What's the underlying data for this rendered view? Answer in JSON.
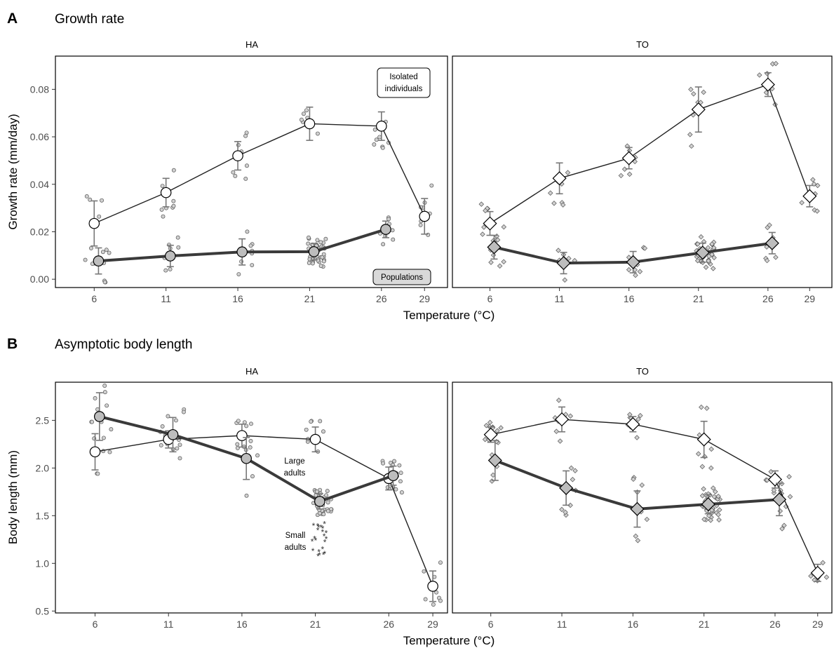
{
  "chart_data": [
    {
      "type": "line",
      "panel_letter": "A",
      "title": "Growth rate",
      "xlabel": "Temperature (°C)",
      "ylabel": "Growth rate (mm/day)",
      "x_ticks": [
        6,
        11,
        16,
        21,
        26,
        29
      ],
      "y_ticks": [
        0.0,
        0.02,
        0.04,
        0.06,
        0.08
      ],
      "y_tick_labels": [
        "0.00",
        "0.02",
        "0.04",
        "0.06",
        "0.08"
      ],
      "xlim": [
        3.3,
        30.6
      ],
      "ylim": [
        -0.0035,
        0.094
      ],
      "facets": [
        "HA",
        "TO"
      ],
      "grid": false,
      "annotations": [
        {
          "facet": "HA",
          "text": [
            "Isolated",
            "individuals"
          ],
          "boxed": true,
          "fill": "#ffffff"
        },
        {
          "facet": "HA",
          "text": [
            "Populations"
          ],
          "boxed": true,
          "fill": "#d9d9d9"
        }
      ],
      "series": [
        {
          "facet": "HA",
          "group": "isolated",
          "marker": "circle",
          "fill": "#ffffff",
          "x": [
            6,
            11,
            16,
            21,
            26,
            29
          ],
          "y": [
            0.0235,
            0.0365,
            0.052,
            0.0655,
            0.0645,
            0.0265
          ],
          "err": [
            0.0095,
            0.006,
            0.006,
            0.007,
            0.006,
            0.0075
          ]
        },
        {
          "facet": "HA",
          "group": "populations",
          "marker": "circle",
          "fill": "#bdbdbd",
          "x": [
            6.3,
            11.3,
            16.3,
            21.3,
            26.3
          ],
          "y": [
            0.0077,
            0.0098,
            0.0115,
            0.0116,
            0.021
          ],
          "err": [
            0.0055,
            0.0045,
            0.0055,
            0.0035,
            0.0035
          ]
        },
        {
          "facet": "TO",
          "group": "isolated",
          "marker": "diamond",
          "fill": "#ffffff",
          "x": [
            6,
            11,
            16,
            21,
            26,
            29
          ],
          "y": [
            0.0235,
            0.0425,
            0.051,
            0.0715,
            0.082,
            0.035
          ],
          "err": [
            0.005,
            0.0065,
            0.0045,
            0.0095,
            0.005,
            0.0045
          ]
        },
        {
          "facet": "TO",
          "group": "populations",
          "marker": "diamond",
          "fill": "#bdbdbd",
          "x": [
            6.3,
            11.3,
            16.3,
            21.3,
            26.3
          ],
          "y": [
            0.0135,
            0.0068,
            0.0072,
            0.0112,
            0.0152
          ],
          "err": [
            0.005,
            0.0045,
            0.0045,
            0.004,
            0.0045
          ]
        }
      ]
    },
    {
      "type": "line",
      "panel_letter": "B",
      "title": "Asymptotic body length",
      "xlabel": "Temperature (°C)",
      "ylabel": "Body length (mm)",
      "x_ticks": [
        6,
        11,
        16,
        21,
        26,
        29
      ],
      "y_ticks": [
        0.5,
        1.0,
        1.5,
        2.0,
        2.5
      ],
      "y_tick_labels": [
        "0.5",
        "1.0",
        "1.5",
        "2.0",
        "2.5"
      ],
      "xlim": [
        3.3,
        30.0
      ],
      "ylim": [
        0.48,
        2.9
      ],
      "facets": [
        "HA",
        "TO"
      ],
      "grid": false,
      "annotations": [
        {
          "facet": "HA",
          "text": [
            "Large",
            "adults"
          ],
          "boxed": false
        },
        {
          "facet": "HA",
          "text": [
            "Small",
            "adults"
          ],
          "boxed": false
        }
      ],
      "series": [
        {
          "facet": "HA",
          "group": "isolated",
          "marker": "circle",
          "fill": "#ffffff",
          "x": [
            6,
            11,
            16,
            21,
            26,
            29
          ],
          "y": [
            2.17,
            2.3,
            2.34,
            2.3,
            1.89,
            0.76
          ],
          "err": [
            0.19,
            0.09,
            0.12,
            0.13,
            0.12,
            0.16
          ]
        },
        {
          "facet": "HA",
          "group": "populations",
          "marker": "circle",
          "fill": "#bdbdbd",
          "x": [
            6.3,
            11.3,
            16.3,
            21.3,
            26.3
          ],
          "y": [
            2.54,
            2.35,
            2.1,
            1.65,
            1.92
          ],
          "err": [
            0.25,
            0.18,
            0.22,
            0.08,
            0.1
          ]
        },
        {
          "facet": "TO",
          "group": "isolated",
          "marker": "diamond",
          "fill": "#ffffff",
          "x": [
            6,
            11,
            16,
            21,
            26,
            29
          ],
          "y": [
            2.35,
            2.51,
            2.46,
            2.3,
            1.88,
            0.9
          ],
          "err": [
            0.08,
            0.13,
            0.08,
            0.19,
            0.09,
            0.09
          ]
        },
        {
          "facet": "TO",
          "group": "populations",
          "marker": "diamond",
          "fill": "#bdbdbd",
          "x": [
            6.3,
            11.3,
            16.3,
            21.3,
            26.3
          ],
          "y": [
            2.08,
            1.79,
            1.57,
            1.62,
            1.67
          ],
          "err": [
            0.21,
            0.18,
            0.19,
            0.1,
            0.17
          ]
        }
      ]
    }
  ]
}
